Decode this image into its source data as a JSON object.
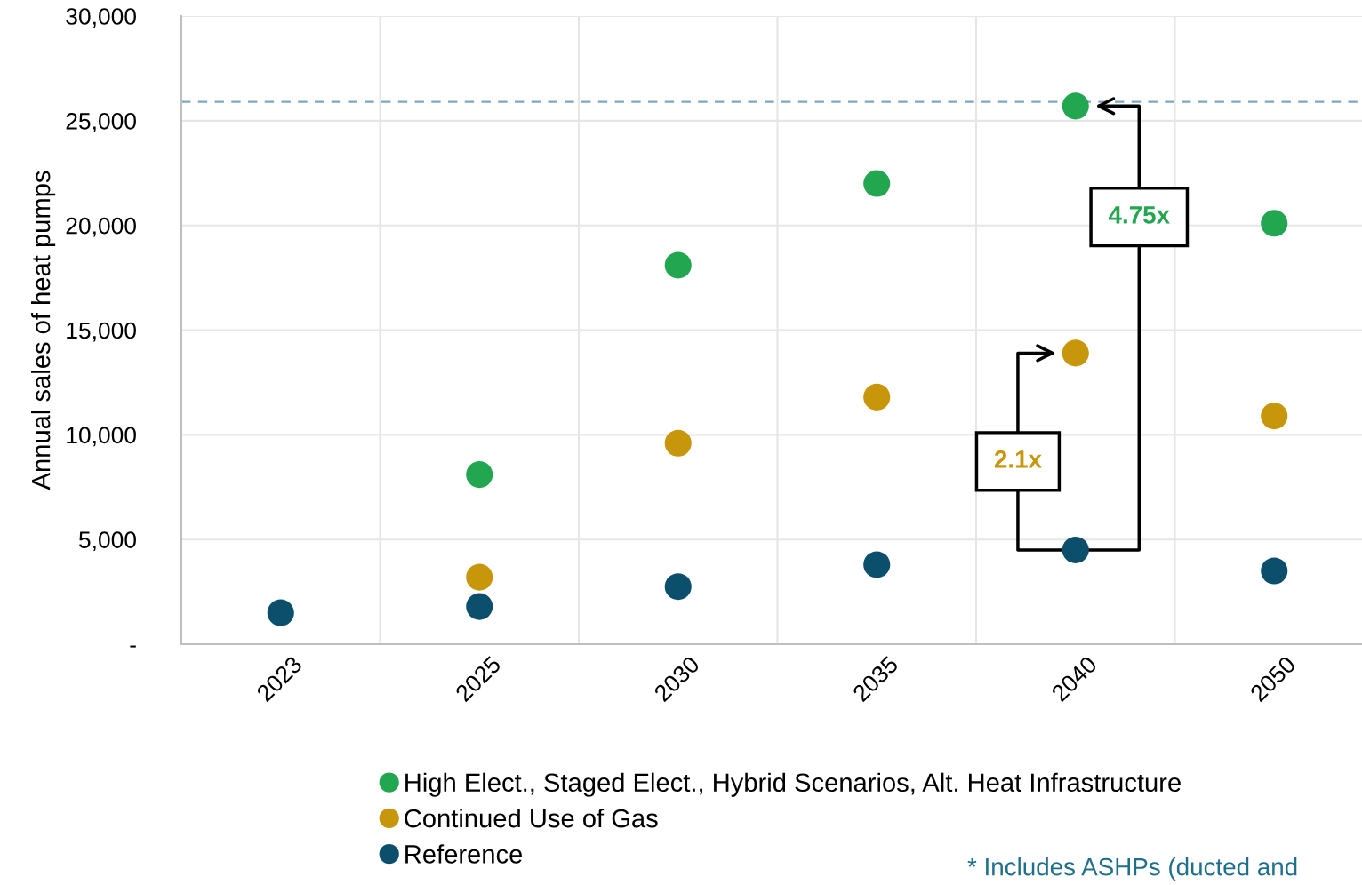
{
  "chart_data": {
    "type": "scatter",
    "ylabel": "Annual sales of heat pumps",
    "categories": [
      "2023",
      "2025",
      "2030",
      "2035",
      "2040",
      "2050"
    ],
    "series": [
      {
        "name": "High Elect., Staged Elect., Hybrid Scenarios, Alt. Heat Infrastructure",
        "color": "#22a650",
        "values": [
          null,
          8100,
          18100,
          22000,
          25700,
          20100
        ]
      },
      {
        "name": "Continued Use of Gas",
        "color": "#c8960a",
        "values": [
          null,
          3200,
          9600,
          11800,
          13900,
          10900
        ]
      },
      {
        "name": "Reference",
        "color": "#0b4f6c",
        "values": [
          1500,
          1800,
          2750,
          3800,
          4500,
          3500
        ]
      }
    ],
    "ylim": [
      0,
      30000
    ],
    "yticks": [
      {
        "value": 0,
        "label": "-"
      },
      {
        "value": 5000,
        "label": "5,000"
      },
      {
        "value": 10000,
        "label": "10,000"
      },
      {
        "value": 15000,
        "label": "15,000"
      },
      {
        "value": 20000,
        "label": "20,000"
      },
      {
        "value": 25000,
        "label": "25,000"
      },
      {
        "value": 30000,
        "label": "30,000"
      }
    ],
    "ref_lines": [
      {
        "axis": "y",
        "value": 25900,
        "color": "#7fa8c0",
        "line_style": "dashed"
      }
    ],
    "annotations": [
      {
        "text": "2.1x",
        "x": "2040",
        "y": 4500
      },
      {
        "text": "4.75x",
        "x": "2040",
        "y": 4500
      },
      "* Includes ASHPs (ducted and"
    ],
    "grid": true,
    "legend": "bottom",
    "marker": "circle"
  }
}
